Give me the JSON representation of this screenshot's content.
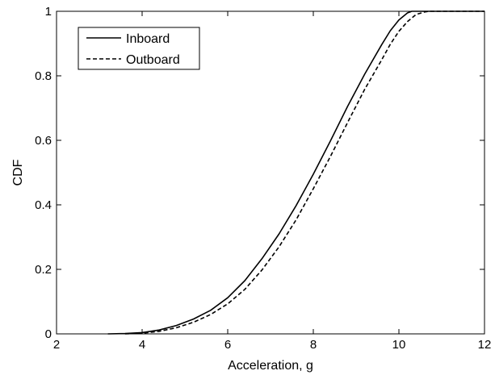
{
  "chart_data": {
    "type": "line",
    "title": "",
    "xlabel": "Acceleration, g",
    "ylabel": "CDF",
    "xlim": [
      2,
      12
    ],
    "ylim": [
      0,
      1
    ],
    "xticks": [
      2,
      4,
      6,
      8,
      10,
      12
    ],
    "yticks": [
      0,
      0.2,
      0.4,
      0.6,
      0.8,
      1
    ],
    "xtick_labels": [
      "2",
      "4",
      "6",
      "8",
      "10",
      "12"
    ],
    "ytick_labels": [
      "0",
      "0.2",
      "0.4",
      "0.6",
      "0.8",
      "1"
    ],
    "grid": false,
    "legend_position": "top-left",
    "series": [
      {
        "name": "Inboard",
        "line_style": "solid",
        "color": "#000000",
        "x": [
          3.2,
          3.6,
          4.0,
          4.4,
          4.8,
          5.2,
          5.6,
          6.0,
          6.4,
          6.8,
          7.2,
          7.6,
          8.0,
          8.4,
          8.8,
          9.2,
          9.6,
          9.8,
          10.0,
          10.2,
          10.3,
          10.4,
          12.0
        ],
        "y": [
          0.0,
          0.001,
          0.004,
          0.012,
          0.026,
          0.046,
          0.073,
          0.112,
          0.165,
          0.233,
          0.31,
          0.398,
          0.495,
          0.598,
          0.705,
          0.805,
          0.897,
          0.94,
          0.973,
          0.995,
          1.0,
          1.0,
          1.0
        ]
      },
      {
        "name": "Outboard",
        "line_style": "dashed",
        "color": "#000000",
        "x": [
          3.6,
          4.0,
          4.4,
          4.8,
          5.2,
          5.6,
          6.0,
          6.4,
          6.8,
          7.2,
          7.6,
          8.0,
          8.4,
          8.8,
          9.2,
          9.6,
          9.8,
          10.0,
          10.2,
          10.4,
          10.6,
          10.7,
          12.0
        ],
        "y": [
          0.0,
          0.002,
          0.008,
          0.019,
          0.036,
          0.06,
          0.093,
          0.138,
          0.198,
          0.27,
          0.354,
          0.45,
          0.55,
          0.655,
          0.758,
          0.85,
          0.898,
          0.938,
          0.968,
          0.99,
          0.998,
          1.0,
          1.0
        ]
      }
    ]
  }
}
